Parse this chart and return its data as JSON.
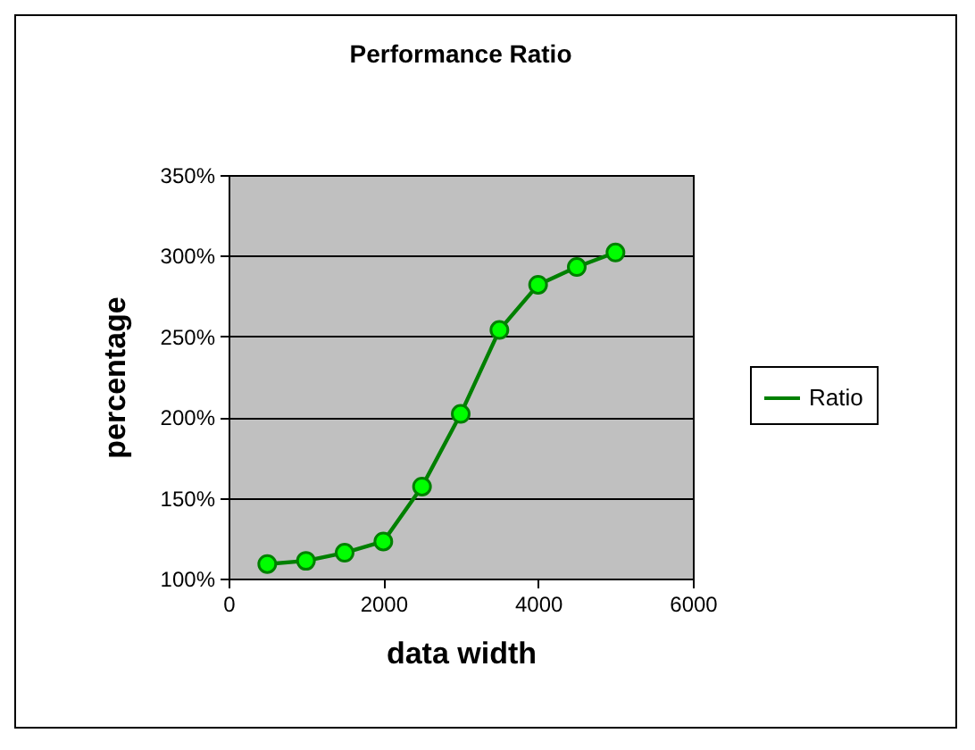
{
  "chart_data": {
    "type": "line",
    "title": "Performance Ratio",
    "xlabel": "data width",
    "ylabel": "percentage",
    "x": [
      500,
      1000,
      1500,
      2000,
      2500,
      3000,
      3500,
      4000,
      4500,
      5000
    ],
    "series": [
      {
        "name": "Ratio",
        "color": "#008000",
        "values": [
          109,
          111,
          116,
          123,
          157,
          202,
          254,
          282,
          293,
          302
        ]
      }
    ],
    "xlim": [
      0,
      6000
    ],
    "xticks": [
      0,
      2000,
      4000,
      6000
    ],
    "ylim": [
      100,
      350
    ],
    "yticks": [
      {
        "value": 100,
        "label": "100%"
      },
      {
        "value": 150,
        "label": "150%"
      },
      {
        "value": 200,
        "label": "200%"
      },
      {
        "value": 250,
        "label": "250%"
      },
      {
        "value": 300,
        "label": "300%"
      },
      {
        "value": 350,
        "label": "350%"
      }
    ],
    "grid": "y",
    "legend": "right",
    "marker": "circle",
    "line_style": "solid"
  }
}
